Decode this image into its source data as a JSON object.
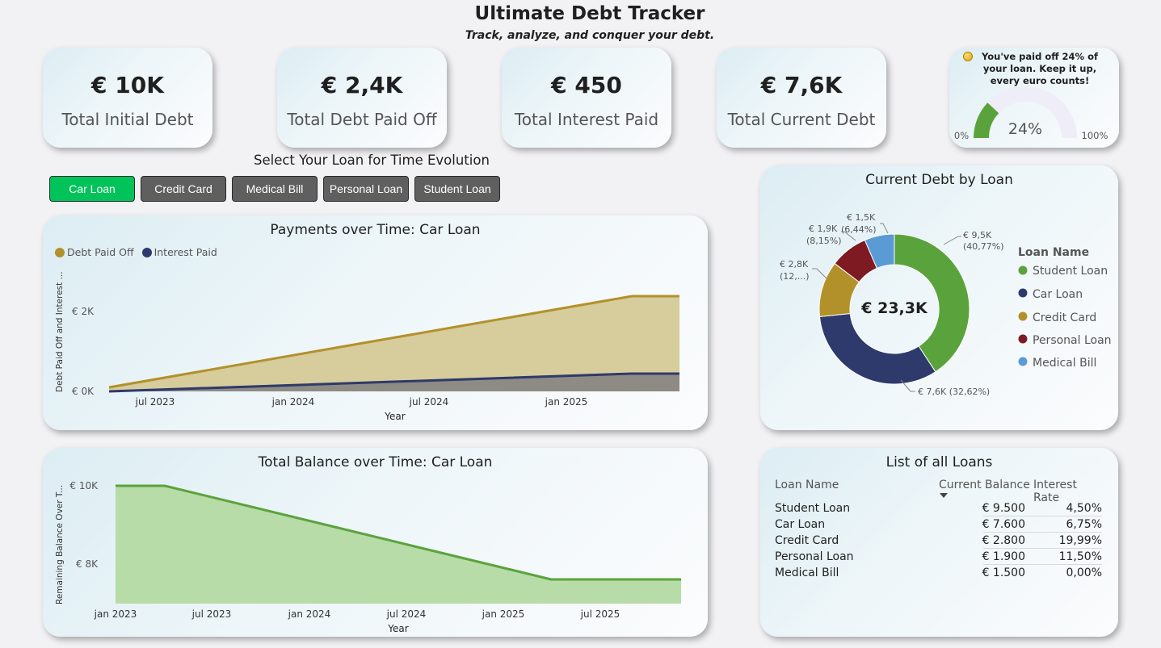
{
  "header": {
    "title": "Ultimate Debt Tracker",
    "subtitle": "Track, analyze, and conquer your debt."
  },
  "kpis": [
    {
      "value": "€ 10K",
      "label": "Total Initial Debt"
    },
    {
      "value": "€ 2,4K",
      "label": "Total Debt Paid Off"
    },
    {
      "value": "€ 450",
      "label": "Total Interest Paid"
    },
    {
      "value": "€ 7,6K",
      "label": "Total Current Debt"
    }
  ],
  "gauge": {
    "message": "You've paid off 24% of your loan. Keep it up, every euro counts!",
    "value_label": "24%",
    "min_label": "0%",
    "max_label": "100%",
    "fraction": 0.24,
    "fill_color": "#5aa33c",
    "track_color": "#efeef8",
    "icon": "coin-icon"
  },
  "loan_selector": {
    "title": "Select Your Loan for Time Evolution",
    "buttons": [
      "Car Loan",
      "Credit Card",
      "Medical Bill",
      "Personal Loan",
      "Student Loan"
    ],
    "active": "Car Loan",
    "active_color": "#00c45a",
    "inactive_color": "#5f5f5f"
  },
  "payments_chart": {
    "title": "Payments over Time: Car Loan",
    "legend": [
      {
        "name": "Debt Paid Off",
        "color": "#b3912a"
      },
      {
        "name": "Interest Paid",
        "color": "#2e3a6b"
      }
    ],
    "ylabel": "Debt Paid Off and Interest ...",
    "xlabel": "Year",
    "yticks": [
      "€ 2K",
      "€ 0K"
    ],
    "xticks": [
      "jul 2023",
      "jan 2024",
      "jul 2024",
      "jan 2025"
    ]
  },
  "balance_chart": {
    "title": "Total Balance over Time: Car Loan",
    "ylabel": "Remaining Balance Over T...",
    "xlabel": "Year",
    "yticks": [
      "€ 10K",
      "€ 8K"
    ],
    "xticks": [
      "jan 2023",
      "jul 2023",
      "jan 2024",
      "jul 2024",
      "jan 2025",
      "jul 2025"
    ],
    "color": "#5aa33c"
  },
  "donut": {
    "title": "Current Debt by Loan",
    "center_label": "€ 23,3K",
    "legend_title": "Loan Name",
    "slices": [
      {
        "name": "Student Loan",
        "value": 9500,
        "color": "#5aa33c",
        "label_1": "€ 9,5K",
        "label_2": "(40,77%)"
      },
      {
        "name": "Car Loan",
        "value": 7600,
        "color": "#2e3a6b",
        "label_1": "€ 7,6K (32,62%)",
        "label_2": ""
      },
      {
        "name": "Credit Card",
        "value": 2800,
        "color": "#b3912a",
        "label_1": "€ 2,8K",
        "label_2": "(12,...)"
      },
      {
        "name": "Personal Loan",
        "value": 1900,
        "color": "#7d1a22",
        "label_1": "€ 1,9K",
        "label_2": "(8,15%)"
      },
      {
        "name": "Medical Bill",
        "value": 1500,
        "color": "#5b9bd5",
        "label_1": "€ 1,5K",
        "label_2": "(6,44%)"
      }
    ]
  },
  "loan_table": {
    "title": "List of all Loans",
    "columns": [
      "Loan Name",
      "Current Balance",
      "Interest Rate"
    ],
    "rows": [
      [
        "Student Loan",
        "€ 9.500",
        "4,50%"
      ],
      [
        "Car Loan",
        "€ 7.600",
        "6,75%"
      ],
      [
        "Credit Card",
        "€ 2.800",
        "19,99%"
      ],
      [
        "Personal Loan",
        "€ 1.900",
        "11,50%"
      ],
      [
        "Medical Bill",
        "€ 1.500",
        "0,00%"
      ]
    ]
  },
  "chart_data": [
    {
      "type": "area",
      "title": "Payments over Time: Car Loan",
      "xlabel": "Year",
      "ylabel": "Debt Paid Off and Interest ...",
      "x": [
        "2023-05",
        "2025-05",
        "2025-11"
      ],
      "series": [
        {
          "name": "Debt Paid Off",
          "values": [
            100,
            2400,
            2400
          ]
        },
        {
          "name": "Interest Paid",
          "values": [
            0,
            450,
            450
          ]
        }
      ],
      "ylim": [
        0,
        2400
      ],
      "legend": "top-left"
    },
    {
      "type": "area",
      "title": "Total Balance over Time: Car Loan",
      "xlabel": "Year",
      "ylabel": "Remaining Balance Over T...",
      "x": [
        "2023-01",
        "2023-04",
        "2025-04",
        "2025-12"
      ],
      "series": [
        {
          "values": [
            10000,
            10000,
            7600,
            7600
          ]
        }
      ],
      "ylim": [
        7000,
        10000
      ]
    },
    {
      "type": "pie",
      "title": "Current Debt by Loan",
      "categories": [
        "Student Loan",
        "Car Loan",
        "Credit Card",
        "Personal Loan",
        "Medical Bill"
      ],
      "values": [
        9500,
        7600,
        2800,
        1900,
        1500
      ],
      "legend": "right"
    }
  ]
}
